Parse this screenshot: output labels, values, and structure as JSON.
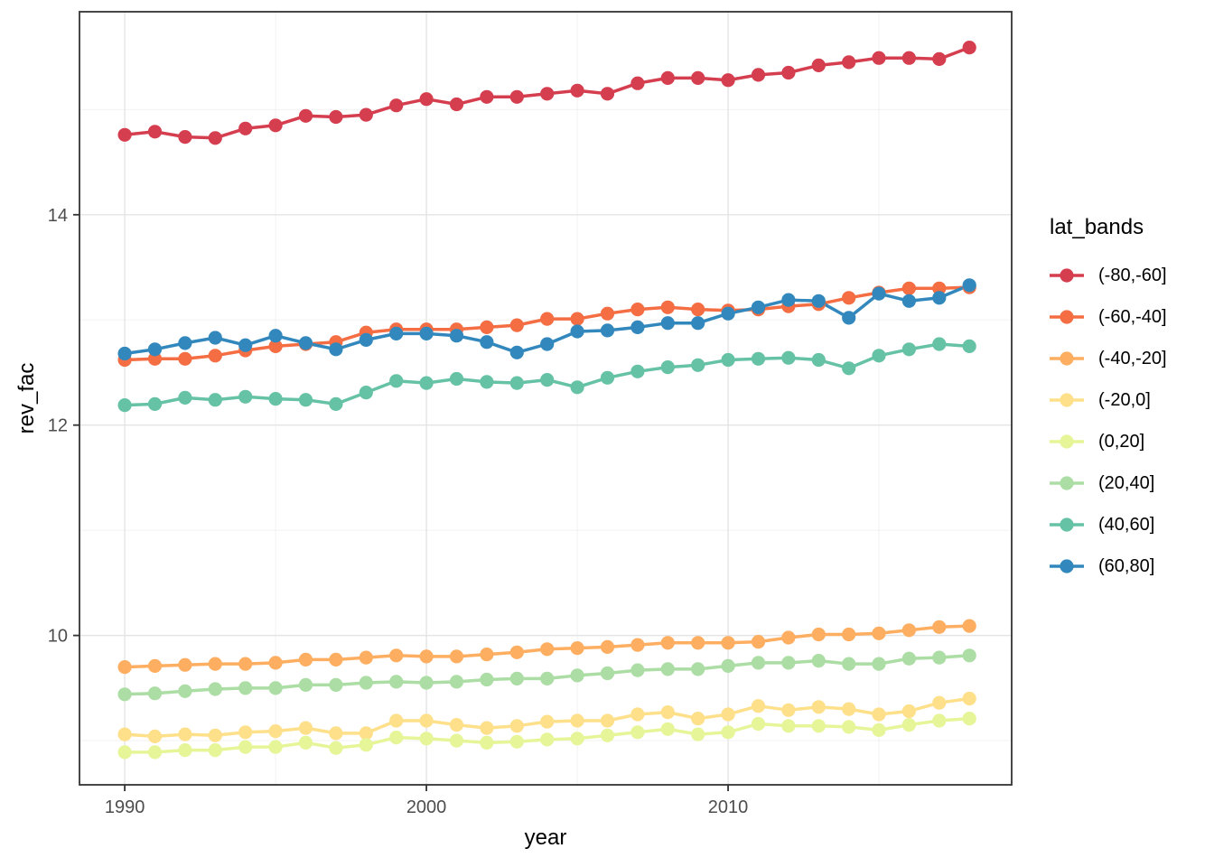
{
  "chart_data": {
    "type": "line",
    "title": "",
    "xlabel": "year",
    "ylabel": "rev_fac",
    "legend_title": "lat_bands",
    "legend_position": "right",
    "grid": true,
    "xlim": [
      1988.5,
      2019.4
    ],
    "ylim": [
      8.58,
      15.93
    ],
    "x_ticks": {
      "major": [
        1990,
        2000,
        2010
      ],
      "minor": [
        1995,
        2005,
        2015
      ]
    },
    "y_ticks": {
      "major": [
        10,
        12,
        14
      ],
      "minor": [
        9,
        11,
        13,
        15
      ]
    },
    "x": [
      1990,
      1991,
      1992,
      1993,
      1994,
      1995,
      1996,
      1997,
      1998,
      1999,
      2000,
      2001,
      2002,
      2003,
      2004,
      2005,
      2006,
      2007,
      2008,
      2009,
      2010,
      2011,
      2012,
      2013,
      2014,
      2015,
      2016,
      2017,
      2018
    ],
    "series": [
      {
        "name": "(-80,-60]",
        "color": "#D53E4F",
        "values": [
          14.76,
          14.79,
          14.74,
          14.73,
          14.82,
          14.85,
          14.94,
          14.93,
          14.95,
          15.04,
          15.1,
          15.05,
          15.12,
          15.12,
          15.15,
          15.18,
          15.15,
          15.25,
          15.3,
          15.3,
          15.28,
          15.33,
          15.35,
          15.42,
          15.45,
          15.49,
          15.49,
          15.48,
          15.59
        ]
      },
      {
        "name": "(-60,-40]",
        "color": "#F46D43",
        "values": [
          12.62,
          12.63,
          12.63,
          12.66,
          12.71,
          12.75,
          12.77,
          12.79,
          12.88,
          12.91,
          12.91,
          12.91,
          12.93,
          12.95,
          13.01,
          13.01,
          13.06,
          13.1,
          13.12,
          13.1,
          13.09,
          13.1,
          13.13,
          13.15,
          13.21,
          13.26,
          13.3,
          13.3,
          13.31
        ]
      },
      {
        "name": "(-40,-20]",
        "color": "#FDAE61",
        "values": [
          9.7,
          9.71,
          9.72,
          9.73,
          9.73,
          9.74,
          9.77,
          9.77,
          9.79,
          9.81,
          9.8,
          9.8,
          9.82,
          9.84,
          9.87,
          9.88,
          9.89,
          9.91,
          9.93,
          9.93,
          9.93,
          9.94,
          9.98,
          10.01,
          10.01,
          10.02,
          10.05,
          10.08,
          10.09
        ]
      },
      {
        "name": "(-20,0]",
        "color": "#FEE08B",
        "values": [
          9.06,
          9.04,
          9.06,
          9.05,
          9.08,
          9.09,
          9.12,
          9.07,
          9.07,
          9.19,
          9.19,
          9.15,
          9.12,
          9.14,
          9.18,
          9.19,
          9.19,
          9.25,
          9.27,
          9.21,
          9.25,
          9.33,
          9.29,
          9.32,
          9.3,
          9.25,
          9.28,
          9.36,
          9.4
        ]
      },
      {
        "name": "(0,20]",
        "color": "#E6F598",
        "values": [
          8.89,
          8.89,
          8.91,
          8.91,
          8.94,
          8.94,
          8.98,
          8.93,
          8.96,
          9.03,
          9.02,
          9.0,
          8.98,
          8.99,
          9.01,
          9.02,
          9.05,
          9.08,
          9.11,
          9.06,
          9.08,
          9.16,
          9.14,
          9.14,
          9.13,
          9.1,
          9.15,
          9.19,
          9.21
        ]
      },
      {
        "name": "(20,40]",
        "color": "#ABDDA4",
        "values": [
          9.44,
          9.45,
          9.47,
          9.49,
          9.5,
          9.5,
          9.53,
          9.53,
          9.55,
          9.56,
          9.55,
          9.56,
          9.58,
          9.59,
          9.59,
          9.62,
          9.64,
          9.67,
          9.68,
          9.68,
          9.71,
          9.74,
          9.74,
          9.76,
          9.73,
          9.73,
          9.78,
          9.79,
          9.81
        ]
      },
      {
        "name": "(40,60]",
        "color": "#66C2A5",
        "values": [
          12.19,
          12.2,
          12.26,
          12.24,
          12.27,
          12.25,
          12.24,
          12.2,
          12.31,
          12.42,
          12.4,
          12.44,
          12.41,
          12.4,
          12.43,
          12.36,
          12.45,
          12.51,
          12.55,
          12.57,
          12.62,
          12.63,
          12.64,
          12.62,
          12.54,
          12.66,
          12.72,
          12.77,
          12.75
        ]
      },
      {
        "name": "(60,80]",
        "color": "#3288BD",
        "values": [
          12.68,
          12.72,
          12.78,
          12.83,
          12.76,
          12.85,
          12.78,
          12.72,
          12.81,
          12.87,
          12.87,
          12.85,
          12.79,
          12.69,
          12.77,
          12.89,
          12.9,
          12.93,
          12.97,
          12.97,
          13.06,
          13.12,
          13.19,
          13.18,
          13.02,
          13.25,
          13.18,
          13.21,
          13.33
        ]
      }
    ],
    "style": {
      "panel_border_color": "#333333",
      "grid_major_color": "#E4E4E4",
      "grid_minor_color": "#F0F0F0",
      "tick_color": "#333333",
      "tick_label_color": "#4D4D4D"
    }
  }
}
